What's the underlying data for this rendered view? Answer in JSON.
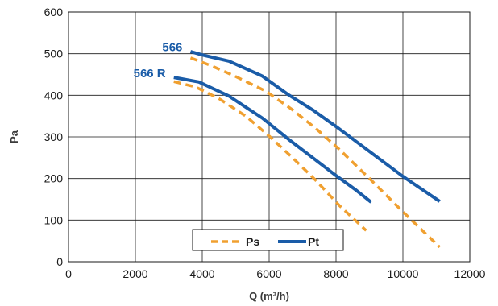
{
  "chart_data": {
    "type": "line",
    "xlabel": "Q (m³/h)",
    "ylabel": "Pa",
    "xlim": [
      0,
      12000
    ],
    "ylim": [
      0,
      600
    ],
    "xticks": [
      0,
      2000,
      4000,
      6000,
      8000,
      10000,
      12000
    ],
    "yticks": [
      0,
      100,
      200,
      300,
      400,
      500,
      600
    ],
    "grid": true,
    "legend": {
      "placement": "bottom-center",
      "entries": [
        {
          "name": "Ps",
          "style": "dashed",
          "color": "#F0A030"
        },
        {
          "name": "Pt",
          "style": "solid",
          "color": "#1A5CA8"
        }
      ]
    },
    "series_labels": [
      {
        "text": "566",
        "color": "#1A5CA8",
        "x": 3600,
        "y": 500
      },
      {
        "text": "566 R",
        "color": "#1A5CA8",
        "x": 3100,
        "y": 437
      }
    ],
    "series": [
      {
        "name": "Pt",
        "curve": "566",
        "style": "solid",
        "color": "#1A5CA8",
        "x": [
          3650,
          4000,
          4800,
          5800,
          6600,
          7300,
          8000,
          9000,
          10000,
          11100
        ],
        "y": [
          505,
          497,
          482,
          446,
          400,
          365,
          325,
          265,
          205,
          145
        ]
      },
      {
        "name": "Ps",
        "curve": "566",
        "style": "dashed",
        "color": "#F0A030",
        "x": [
          3650,
          4300,
          5000,
          5900,
          6700,
          7400,
          8100,
          9000,
          10000,
          11100
        ],
        "y": [
          490,
          470,
          445,
          410,
          365,
          320,
          270,
          200,
          120,
          35
        ]
      },
      {
        "name": "Pt",
        "curve": "566 R",
        "style": "solid",
        "color": "#1A5CA8",
        "x": [
          3150,
          3900,
          4800,
          5800,
          6600,
          7300,
          8000,
          8600,
          9050
        ],
        "y": [
          443,
          432,
          398,
          345,
          293,
          250,
          207,
          172,
          143
        ]
      },
      {
        "name": "Ps",
        "curve": "566 R",
        "style": "dashed",
        "color": "#F0A030",
        "x": [
          3150,
          3800,
          4500,
          5300,
          6000,
          6700,
          7400,
          8100,
          8900
        ],
        "y": [
          433,
          420,
          392,
          350,
          302,
          250,
          195,
          135,
          75
        ]
      }
    ]
  }
}
